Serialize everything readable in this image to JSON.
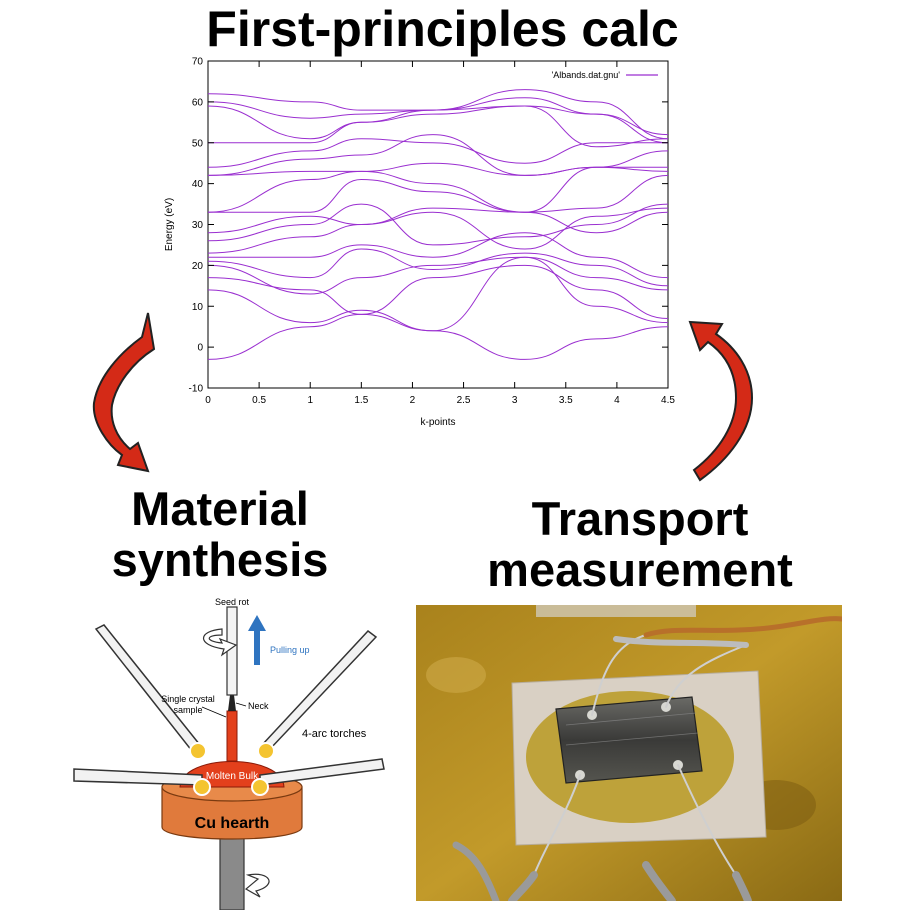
{
  "headings": {
    "top": "First-principles calc",
    "left": [
      "Material",
      "synthesis"
    ],
    "right": [
      "Transport",
      "measurement"
    ]
  },
  "chart_data": {
    "type": "line",
    "xlabel": "k-points",
    "ylabel": "Energy (eV)",
    "xlim": [
      0,
      4.5
    ],
    "ylim": [
      -10,
      70
    ],
    "xticks": [
      "0",
      "0.5",
      "1",
      "1.5",
      "2",
      "2.5",
      "3",
      "3.5",
      "4",
      "4.5"
    ],
    "yticks": [
      "-10",
      "0",
      "10",
      "20",
      "30",
      "40",
      "50",
      "60",
      "70"
    ],
    "legend": {
      "label": "'Albands.dat.gnu'",
      "placement": "top-right"
    },
    "grid": false,
    "color": "#9a2fd0",
    "x": [
      0,
      1,
      1.5,
      2.2,
      3.1,
      3.8,
      4.5
    ],
    "series": [
      {
        "values": [
          -3,
          5,
          8,
          4,
          -3,
          2,
          5
        ]
      },
      {
        "values": [
          14,
          6,
          9,
          4,
          22,
          10,
          6
        ]
      },
      {
        "values": [
          17,
          14,
          8,
          17,
          20,
          14,
          7
        ]
      },
      {
        "values": [
          20,
          13,
          17,
          20,
          22,
          17,
          14
        ]
      },
      {
        "values": [
          21,
          17,
          24,
          19,
          23,
          20,
          15
        ]
      },
      {
        "values": [
          22,
          22,
          25,
          22,
          28,
          22,
          17
        ]
      },
      {
        "values": [
          23,
          27,
          30,
          33,
          24,
          32,
          34
        ]
      },
      {
        "values": [
          26,
          30,
          35,
          25,
          27,
          30,
          35
        ]
      },
      {
        "values": [
          28,
          32,
          30,
          34,
          33,
          28,
          33
        ]
      },
      {
        "values": [
          33,
          33,
          41,
          38,
          33,
          34,
          42
        ]
      },
      {
        "values": [
          33,
          41,
          43,
          40,
          33,
          44,
          43
        ]
      },
      {
        "values": [
          42,
          43,
          43,
          45,
          42,
          44,
          44
        ]
      },
      {
        "values": [
          42,
          46,
          47,
          52,
          42,
          44,
          48
        ]
      },
      {
        "values": [
          44,
          48,
          51,
          50,
          45,
          50,
          50
        ]
      },
      {
        "values": [
          50,
          50,
          55,
          57,
          59,
          49,
          51
        ]
      },
      {
        "values": [
          59,
          51,
          55,
          58,
          59,
          57,
          52
        ]
      },
      {
        "values": [
          60,
          56,
          57,
          58,
          61,
          57,
          50
        ]
      },
      {
        "values": [
          62,
          60,
          58,
          58,
          63,
          60,
          51
        ]
      }
    ]
  },
  "furnace": {
    "seed_rod": "Seed rot",
    "pulling_up": "Pulling up",
    "single_crystal": [
      "Single crystal",
      "sample"
    ],
    "neck": "Neck",
    "torches": "4-arc torches",
    "molten": "Molten Bulk",
    "hearth": "Cu hearth"
  },
  "colors": {
    "arrow_red": "#d42a17",
    "hearth": "#e07a3c",
    "molten": "#e3401c",
    "pull_arrow": "#2f74c0",
    "board": "#b08a20"
  }
}
